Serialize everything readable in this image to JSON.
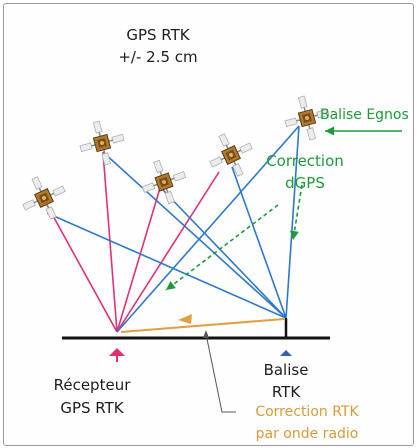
{
  "title": {
    "line1": "GPS RTK",
    "line2": "+/- 2.5 cm"
  },
  "labels": {
    "egnos": "Balise Egnos",
    "correction_dgps_1": "Correction",
    "correction_dgps_2": "dGPS",
    "receiver_1": "Récepteur",
    "receiver_2": "GPS RTK",
    "base_1": "Balise",
    "base_2": "RTK",
    "rtk_correction_1": "Correction RTK",
    "rtk_correction_2": "par onde radio"
  },
  "colors": {
    "pink": "#e0307a",
    "blue": "#2e78c8",
    "green": "#1f9a3a",
    "orange": "#e0a040",
    "ground": "#111111",
    "receiver_marker": "#e0306a",
    "base_marker": "#3a5fb0"
  },
  "icons": {
    "satellite": "satellite-icon"
  }
}
